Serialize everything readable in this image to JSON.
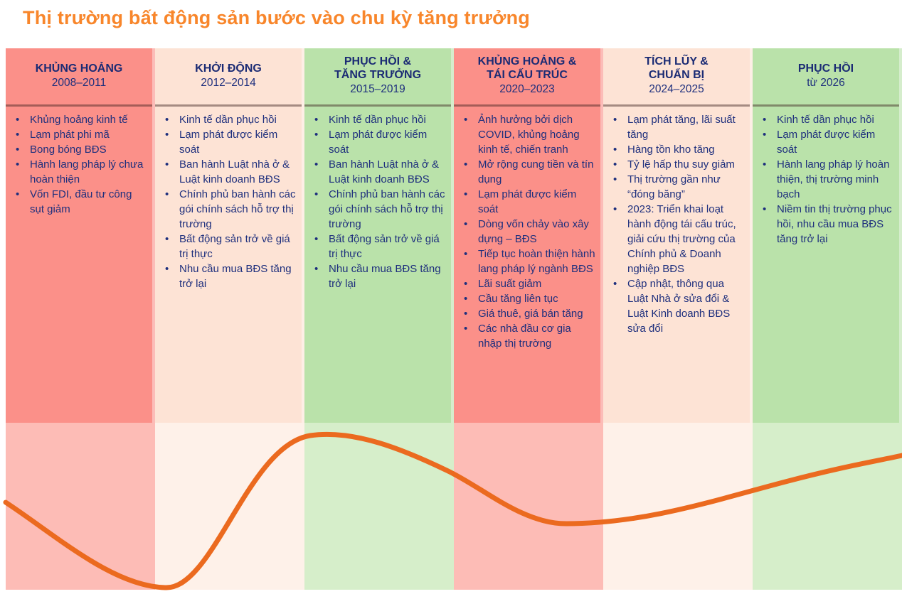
{
  "page": {
    "title": "Thị trường bất động sản bước vào chu kỳ tăng trưởng"
  },
  "colors": {
    "title_orange": "#F8862B",
    "curve_orange": "#EB6A1F",
    "header_navy": "#1B2B74",
    "body_navy": "#1E2F7D",
    "red_top": "#FB9089",
    "red_band": "#FDBCB6",
    "peach_top": "#FDE3D5",
    "peach_band": "#FEF1E9",
    "green_top": "#BAE2AA",
    "green_band": "#D6EECA"
  },
  "columns": [
    {
      "title": "KHỦNG HOẢNG",
      "period": "2008–2011",
      "theme": "red",
      "bullets": [
        "Khủng hoảng kinh tế",
        "Lạm phát phi mã",
        "Bong bóng BĐS",
        "Hành lang pháp lý chưa hoàn thiện",
        "Vốn FDI, đầu tư công sụt giảm"
      ]
    },
    {
      "title": "KHỞI ĐỘNG",
      "period": "2012–2014",
      "theme": "peach",
      "bullets": [
        "Kinh tế dần phục hồi",
        "Lạm phát được kiểm soát",
        "Ban hành Luật nhà ở & Luật kinh doanh BĐS",
        "Chính phủ ban hành các gói chính sách hỗ trợ thị trường",
        "Bất động sản trở về giá trị thực",
        "Nhu cầu mua BĐS tăng trở lại"
      ]
    },
    {
      "title": "PHỤC HỒI &\nTĂNG TRƯỞNG",
      "period": "2015–2019",
      "theme": "green",
      "bullets": [
        "Kinh tế dần phục hồi",
        "Lạm phát được kiểm soát",
        "Ban hành Luật nhà ở & Luật kinh doanh BĐS",
        "Chính phủ ban hành các gói chính sách hỗ trợ thị trường",
        "Bất động sản trở về giá trị thực",
        "Nhu cầu mua BĐS tăng trở lại"
      ]
    },
    {
      "title": "KHỦNG HOẢNG &\nTÁI CẤU TRÚC",
      "period": "2020–2023",
      "theme": "red",
      "bullets": [
        "Ảnh hưởng bởi dịch COVID, khủng hoảng kinh tế, chiến tranh",
        "Mở rộng cung tiền và tín dụng",
        "Lạm phát được kiểm soát",
        "Dòng vốn chảy vào xây dựng – BĐS",
        "Tiếp tục hoàn thiện hành lang pháp lý ngành BĐS",
        "Lãi suất giảm",
        "Cầu tăng liên tục",
        "Giá thuê, giá bán tăng",
        "Các nhà đầu cơ gia nhập thị trường"
      ]
    },
    {
      "title": "TÍCH LŨY &\nCHUẨN BỊ",
      "period": "2024–2025",
      "theme": "peach",
      "bullets": [
        "Lạm phát tăng, lãi suất tăng",
        "Hàng tồn kho tăng",
        "Tỷ lệ hấp thụ suy giảm",
        "Thị trường gần như “đóng băng”",
        "2023: Triển khai loạt hành động tái cấu trúc, giải cứu thị trường của Chính phủ & Doanh nghiệp BĐS",
        "Cập nhật, thông qua Luật Nhà ở sửa đổi & Luật Kinh doanh BĐS sửa đổi"
      ]
    },
    {
      "title": "PHỤC HỒI",
      "period": "từ 2026",
      "theme": "green",
      "bullets": [
        "Kinh tế dần phục hồi",
        "Lạm phát được kiểm soát",
        "Hành lang pháp lý hoàn thiện, thị trường minh bạch",
        "Niềm tin thị trường phục hồi, nhu cầu mua BĐS tăng trở lại"
      ]
    }
  ]
}
